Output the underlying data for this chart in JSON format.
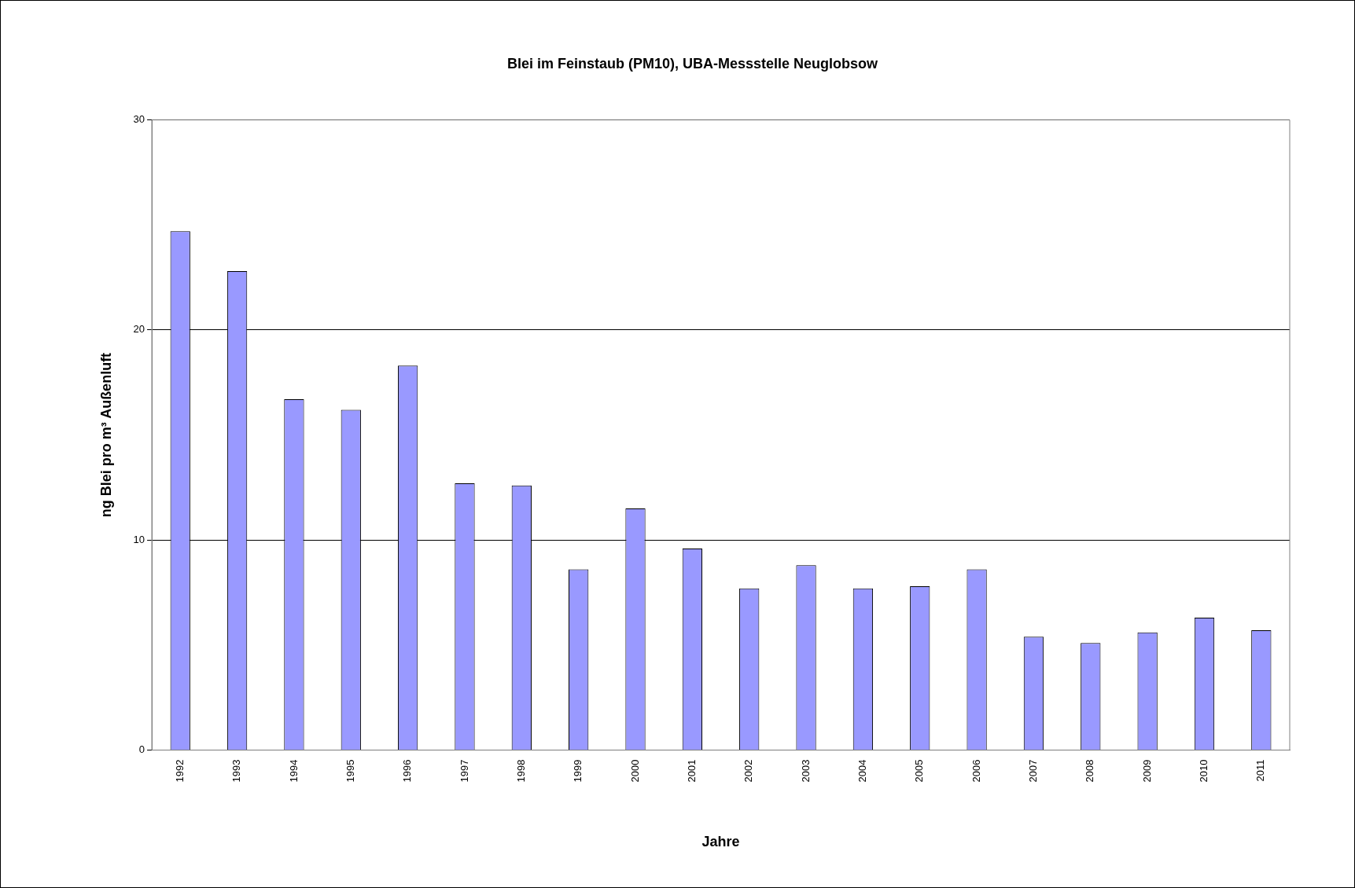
{
  "chart_data": {
    "type": "bar",
    "title": "Blei im Feinstaub (PM10), UBA-Messstelle Neuglobsow",
    "xlabel": "Jahre",
    "ylabel": "ng Blei pro m³ Außenluft",
    "categories": [
      "1992",
      "1993",
      "1994",
      "1995",
      "1996",
      "1997",
      "1998",
      "1999",
      "2000",
      "2001",
      "2002",
      "2003",
      "2004",
      "2005",
      "2006",
      "2007",
      "2008",
      "2009",
      "2010",
      "2011"
    ],
    "values": [
      24.7,
      22.8,
      16.7,
      16.2,
      18.3,
      12.7,
      12.6,
      8.6,
      11.5,
      9.6,
      7.7,
      8.8,
      7.7,
      7.8,
      8.6,
      5.4,
      5.1,
      5.6,
      6.3,
      5.7
    ],
    "color": "#9999ff",
    "ylim": [
      0,
      30
    ],
    "yticks": [
      0,
      10,
      20,
      30
    ],
    "grid": "y"
  }
}
